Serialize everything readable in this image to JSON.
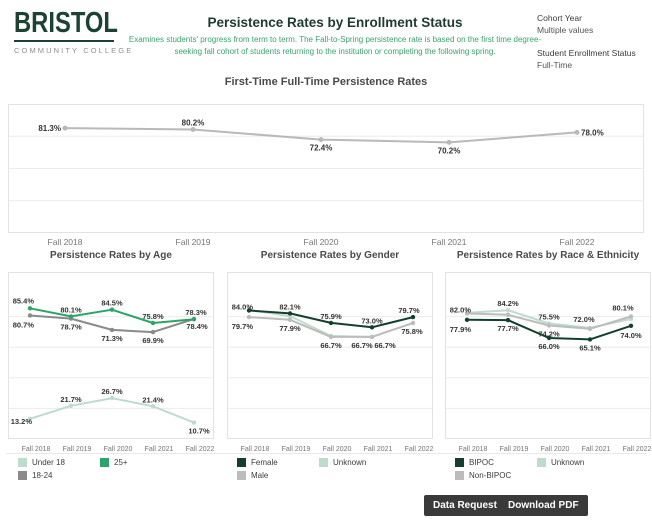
{
  "header": {
    "logo": {
      "name": "BRISTOL",
      "tagline": "COMMUNITY COLLEGE"
    },
    "title": "Persistence Rates by Enrollment Status",
    "subtitle": "Examines students' progress from term to term. The Fall-to-Spring persistence rate is based on the first time degree-seeking fall cohort of students returning to the institution or completing the following spring.",
    "filters": [
      {
        "label": "Cohort Year",
        "value": "Multiple values"
      },
      {
        "label": "Student Enrollment Status",
        "value": "Full-Time"
      }
    ]
  },
  "footer": {
    "data_request_label": "Data Request",
    "download_pdf_label": "Download PDF"
  },
  "colors": {
    "brand_green": "#1d4233",
    "subtitle_green": "#3da26d",
    "darkest_green": "#12402c",
    "medium_green": "#2ba567",
    "light_green": "#bedccb",
    "dark_gray": "#8a8a8a",
    "light_gray": "#bcbcbc",
    "main_line_gray": "#b9b9b9",
    "label_text": "#333333",
    "axis_text": "#757575",
    "grid": "#ececec",
    "border": "#e2e2e2",
    "button_bg": "#3a3a3a"
  },
  "chart_data": [
    {
      "id": "main",
      "type": "line",
      "title": "First-Time Full-Time Persistence Rates",
      "categories": [
        "Fall 2018",
        "Fall 2019",
        "Fall 2020",
        "Fall 2021",
        "Fall 2022"
      ],
      "ylim": [
        0,
        100
      ],
      "grid": "on",
      "series": [
        {
          "name": "Persistence Rate",
          "color_key": "main_line_gray",
          "values": [
            81.3,
            80.2,
            72.4,
            70.2,
            78.0
          ],
          "labels": [
            {
              "i": 0,
              "text": "81.3%",
              "pos": "l"
            },
            {
              "i": 1,
              "text": "80.2%",
              "pos": "a"
            },
            {
              "i": 2,
              "text": "72.4%",
              "pos": "b"
            },
            {
              "i": 3,
              "text": "70.2%",
              "pos": "b"
            },
            {
              "i": 4,
              "text": "78.0%",
              "pos": "r"
            }
          ]
        }
      ],
      "legend": []
    },
    {
      "id": "age",
      "type": "line",
      "title": "Persistence Rates by Age",
      "categories": [
        "Fall 2018",
        "Fall 2019",
        "Fall 2020",
        "Fall 2021",
        "Fall 2022"
      ],
      "ylim": [
        0,
        100
      ],
      "grid": "on",
      "series": [
        {
          "name": "Under 18",
          "color_key": "light_green",
          "values": [
            13.2,
            21.7,
            26.7,
            21.4,
            10.7
          ],
          "labels": [
            {
              "i": 0,
              "text": "13.2%",
              "pos": "l",
              "dx": 6,
              "dy": 2
            },
            {
              "i": 1,
              "text": "21.7%",
              "pos": "a"
            },
            {
              "i": 2,
              "text": "26.7%",
              "pos": "a"
            },
            {
              "i": 3,
              "text": "21.4%",
              "pos": "a"
            },
            {
              "i": 4,
              "text": "10.7%",
              "pos": "b",
              "dx": 5
            }
          ]
        },
        {
          "name": "18-24",
          "color_key": "dark_gray",
          "values": [
            80.7,
            78.7,
            71.3,
            69.9,
            78.4
          ],
          "labels": [
            {
              "i": 0,
              "text": "80.7%",
              "pos": "l",
              "dx": 8,
              "dy": 9
            },
            {
              "i": 1,
              "text": "78.7%",
              "pos": "b"
            },
            {
              "i": 2,
              "text": "71.3%",
              "pos": "b"
            },
            {
              "i": 3,
              "text": "69.9%",
              "pos": "b"
            },
            {
              "i": 4,
              "text": "78.4%",
              "pos": "b",
              "dx": 3,
              "dy": -1
            }
          ]
        },
        {
          "name": "25+",
          "color_key": "medium_green",
          "values": [
            85.4,
            80.1,
            84.5,
            75.8,
            78.3
          ],
          "labels": [
            {
              "i": 0,
              "text": "85.4%",
              "pos": "l",
              "dx": 8,
              "dy": -8
            },
            {
              "i": 1,
              "text": "80.1%",
              "pos": "a"
            },
            {
              "i": 2,
              "text": "84.5%",
              "pos": "a"
            },
            {
              "i": 3,
              "text": "75.8%",
              "pos": "a"
            },
            {
              "i": 4,
              "text": "78.3%",
              "pos": "a",
              "dx": 2
            }
          ]
        }
      ],
      "legend": [
        {
          "label": "Under 18",
          "color_key": "light_green"
        },
        {
          "label": "25+",
          "color_key": "medium_green"
        },
        {
          "label": "18-24",
          "color_key": "dark_gray"
        }
      ]
    },
    {
      "id": "gender",
      "type": "line",
      "title": "Persistence Rates by Gender",
      "categories": [
        "Fall 2018",
        "Fall 2019",
        "Fall 2020",
        "Fall 2021",
        "Fall 2022"
      ],
      "ylim": [
        0,
        100
      ],
      "grid": "on",
      "series": [
        {
          "name": "Unknown",
          "color_key": "light_green",
          "values": [
            84.3,
            80.3,
            67.3,
            66.7,
            null
          ],
          "labels": [
            {
              "i": 3,
              "text": "66.7%",
              "pos": "b",
              "dx": 13
            }
          ]
        },
        {
          "name": "Male",
          "color_key": "light_gray",
          "values": [
            79.7,
            77.9,
            66.7,
            66.7,
            75.8
          ],
          "labels": [
            {
              "i": 0,
              "text": "79.7%",
              "pos": "l",
              "dx": 8,
              "dy": 9
            },
            {
              "i": 1,
              "text": "77.9%",
              "pos": "b"
            },
            {
              "i": 2,
              "text": "66.7%",
              "pos": "b"
            },
            {
              "i": 3,
              "text": "66.7%",
              "pos": "b",
              "dx": -10
            },
            {
              "i": 4,
              "text": "75.8%",
              "pos": "b",
              "dx": -1
            }
          ]
        },
        {
          "name": "Female",
          "color_key": "darkest_green",
          "values": [
            84.0,
            82.1,
            75.9,
            73.0,
            79.7
          ],
          "labels": [
            {
              "i": 0,
              "text": "84.0%",
              "pos": "l",
              "dx": 8,
              "dy": -4
            },
            {
              "i": 1,
              "text": "82.1%",
              "pos": "a"
            },
            {
              "i": 2,
              "text": "75.9%",
              "pos": "a"
            },
            {
              "i": 3,
              "text": "73.0%",
              "pos": "a"
            },
            {
              "i": 4,
              "text": "79.7%",
              "pos": "a",
              "dx": -4
            }
          ]
        }
      ],
      "legend": [
        {
          "label": "Female",
          "color_key": "darkest_green"
        },
        {
          "label": "Unknown",
          "color_key": "light_green"
        },
        {
          "label": "Male",
          "color_key": "light_gray"
        }
      ]
    },
    {
      "id": "race",
      "type": "line",
      "title": "Persistence Rates by Race & Ethnicity",
      "categories": [
        "Fall 2018",
        "Fall 2019",
        "Fall 2020",
        "Fall 2021",
        "Fall 2022"
      ],
      "ylim": [
        0,
        100
      ],
      "grid": "on",
      "series": [
        {
          "name": "Unknown",
          "color_key": "light_green",
          "values": [
            82.4,
            84.2,
            75.5,
            72.6,
            78.4
          ],
          "labels": [
            {
              "i": 1,
              "text": "84.2%",
              "pos": "a"
            },
            {
              "i": 2,
              "text": "75.5%",
              "pos": "a"
            }
          ]
        },
        {
          "name": "Non-BIPOC",
          "color_key": "light_gray",
          "values": [
            82.0,
            81.2,
            74.2,
            72.0,
            80.1
          ],
          "labels": [
            {
              "i": 0,
              "text": "82.0%",
              "pos": "l",
              "dx": 8,
              "dy": -4
            },
            {
              "i": 2,
              "text": "74.2%",
              "pos": "b"
            },
            {
              "i": 3,
              "text": "72.0%",
              "pos": "a",
              "dx": -6,
              "dy": -3
            },
            {
              "i": 4,
              "text": "80.1%",
              "pos": "a",
              "dx": -8,
              "dy": -2
            }
          ]
        },
        {
          "name": "BIPOC",
          "color_key": "darkest_green",
          "values": [
            77.9,
            77.7,
            66.0,
            65.1,
            74.0
          ],
          "labels": [
            {
              "i": 0,
              "text": "77.9%",
              "pos": "l",
              "dx": 8,
              "dy": 9
            },
            {
              "i": 1,
              "text": "77.7%",
              "pos": "b"
            },
            {
              "i": 2,
              "text": "66.0%",
              "pos": "b"
            },
            {
              "i": 3,
              "text": "65.1%",
              "pos": "b"
            },
            {
              "i": 4,
              "text": "74.0%",
              "pos": "b",
              "dy": 1
            }
          ]
        }
      ],
      "legend": [
        {
          "label": "BIPOC",
          "color_key": "darkest_green"
        },
        {
          "label": "Unknown",
          "color_key": "light_green"
        },
        {
          "label": "Non-BIPOC",
          "color_key": "light_gray"
        }
      ]
    }
  ]
}
